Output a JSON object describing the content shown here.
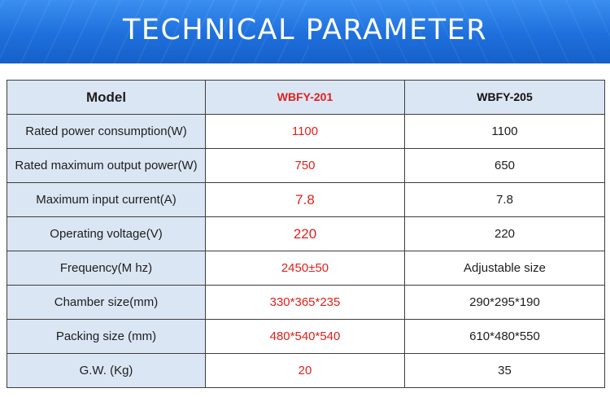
{
  "header": {
    "title": "TECHNICAL PARAMETER"
  },
  "table": {
    "header": {
      "label": "Model",
      "col1": "WBFY-201",
      "col2": "WBFY-205"
    },
    "rows": [
      {
        "label": "Rated power consumption(W)",
        "v1": "1100",
        "v2": "1100"
      },
      {
        "label": "Rated maximum output power(W)",
        "v1": "750",
        "v2": "650"
      },
      {
        "label": "Maximum input current(A)",
        "v1": "7.8",
        "v2": "7.8"
      },
      {
        "label": "Operating voltage(V)",
        "v1": "220",
        "v2": "220"
      },
      {
        "label": "Frequency(M hz)",
        "v1": "2450±50",
        "v2": "Adjustable size"
      },
      {
        "label": "Chamber size(mm)",
        "v1": "330*365*235",
        "v2": "290*295*190"
      },
      {
        "label": "Packing size (mm)",
        "v1": "480*540*540",
        "v2": "610*480*550"
      },
      {
        "label": "G.W. (Kg)",
        "v1": "20",
        "v2": "35"
      }
    ]
  },
  "colors": {
    "banner": "#1e6fdc",
    "label_cell": "#dbe6f4",
    "highlight_text": "#e0201c",
    "border": "#3d3d3d"
  }
}
